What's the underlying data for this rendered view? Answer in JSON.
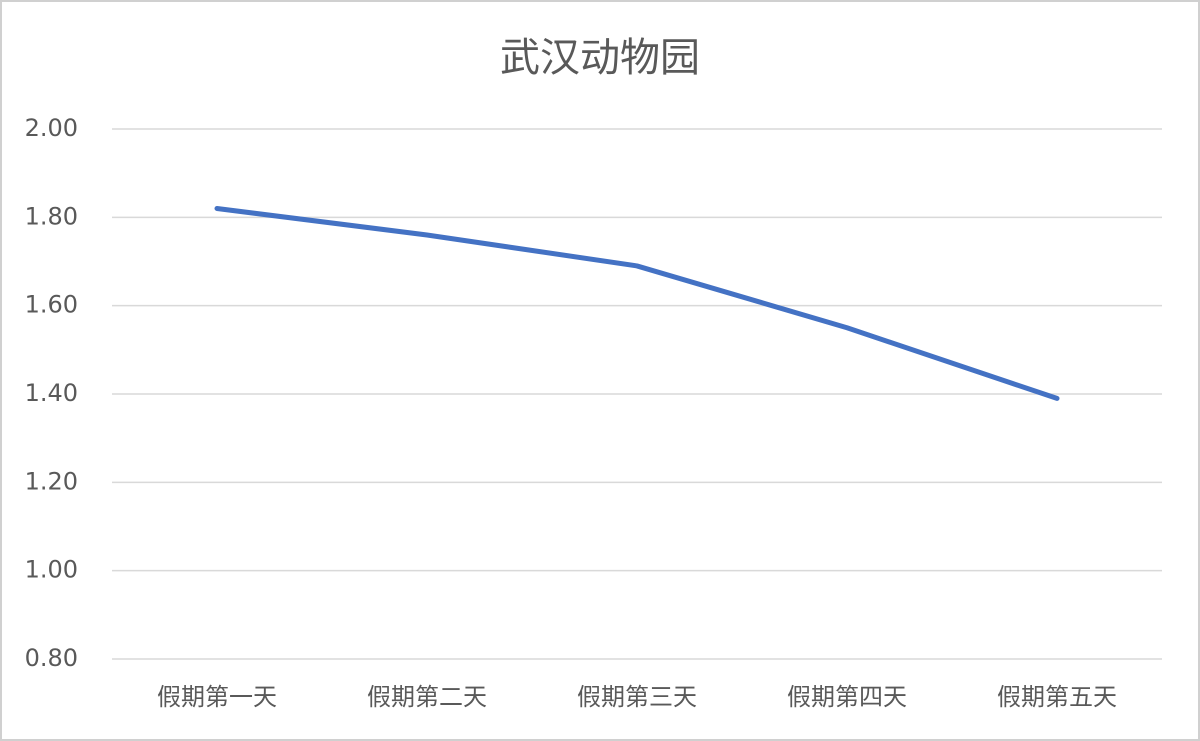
{
  "chart_data": {
    "type": "line",
    "title": "武汉动物园",
    "categories": [
      "假期第一天",
      "假期第二天",
      "假期第三天",
      "假期第四天",
      "假期第五天"
    ],
    "values": [
      1.82,
      1.76,
      1.69,
      1.55,
      1.39
    ],
    "color": "#4472c4",
    "ylim": [
      0.8,
      2.0
    ],
    "yticks": [
      {
        "value": 0.8,
        "label": "0.80"
      },
      {
        "value": 1.0,
        "label": "1.00"
      },
      {
        "value": 1.2,
        "label": "1.20"
      },
      {
        "value": 1.4,
        "label": "1.40"
      },
      {
        "value": 1.6,
        "label": "1.60"
      },
      {
        "value": 1.8,
        "label": "1.80"
      },
      {
        "value": 2.0,
        "label": "2.00"
      }
    ],
    "grid": true
  }
}
